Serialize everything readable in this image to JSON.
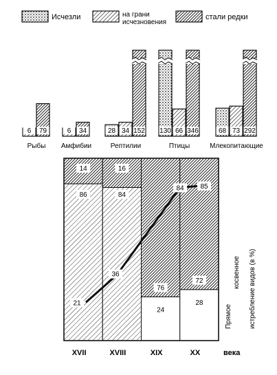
{
  "legend": [
    {
      "key": "extinct",
      "label": "Исчезли",
      "pattern": "dotted"
    },
    {
      "key": "endangered",
      "label": "на грани исчезновения",
      "label_lines": [
        "на грани",
        "исчезновения"
      ],
      "pattern": "hatched"
    },
    {
      "key": "rare",
      "label": "стали редки",
      "pattern": "dark-hatched"
    }
  ],
  "chart_data": [
    {
      "type": "bar",
      "layout": "grouped bars per animal class, broken (truncated) tops on tall bars",
      "categories": [
        "Рыбы",
        "Амфибии",
        "Рептилии",
        "Птицы",
        "Млекопитающие"
      ],
      "series": [
        {
          "name": "Исчезли",
          "values": [
            null,
            null,
            28,
            130,
            68
          ]
        },
        {
          "name": "на грани исчезновения",
          "values": [
            6,
            6,
            34,
            66,
            73
          ]
        },
        {
          "name": "стали редки",
          "values": [
            79,
            34,
            152,
            346,
            292
          ]
        }
      ],
      "value_labels": [
        [
          "6",
          "79"
        ],
        [
          "6",
          "34"
        ],
        [
          "28",
          "34",
          "152"
        ],
        [
          "130",
          "66",
          "346"
        ],
        [
          "68",
          "73",
          "292"
        ]
      ]
    },
    {
      "type": "bar",
      "layout": "100% stacked bars with overlaid line (direct share)",
      "categories": [
        "XVII",
        "XVIII",
        "XIX",
        "XX"
      ],
      "xlabel": "века",
      "ylabel": "Прямое / косвенное истребление видов (в %)",
      "ylabel_lines": [
        "Прямое",
        "косвенное",
        "истребление видов (в %)"
      ],
      "ylim": [
        0,
        100
      ],
      "series": [
        {
          "name": "Прямое",
          "values": [
            86,
            84,
            24,
            28
          ]
        },
        {
          "name": "косвенное",
          "values": [
            14,
            16,
            76,
            72
          ]
        }
      ],
      "line": {
        "x": [
          "XVII",
          "XVII",
          "XVIII",
          "XIX",
          "XX"
        ],
        "values": [
          21,
          21,
          36,
          84,
          85
        ]
      }
    }
  ]
}
